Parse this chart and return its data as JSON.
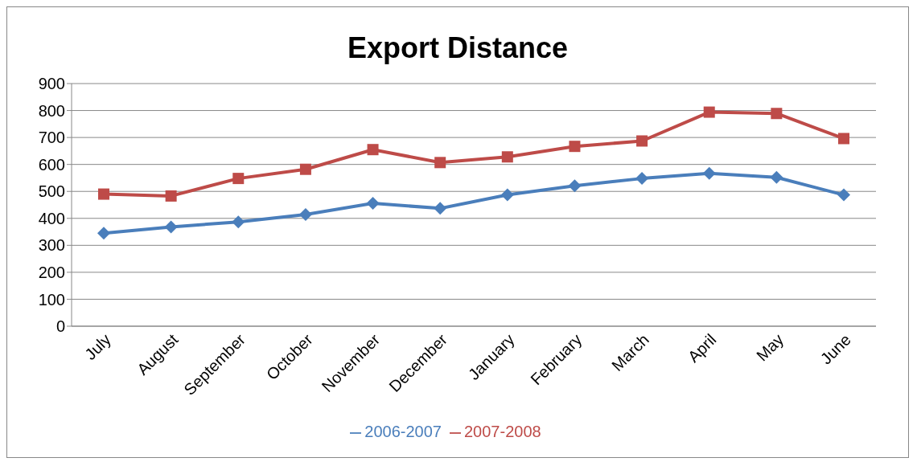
{
  "chart_data": {
    "type": "line",
    "title": "Export Distance",
    "categories": [
      "July",
      "August",
      "September",
      "October",
      "November",
      "December",
      "January",
      "February",
      "March",
      "April",
      "May",
      "June"
    ],
    "series": [
      {
        "name": "2006-2007",
        "color": "#4a7ebb",
        "marker": "diamond",
        "values": [
          345,
          368,
          387,
          414,
          456,
          437,
          487,
          521,
          548,
          567,
          552,
          487
        ]
      },
      {
        "name": "2007-2008",
        "color": "#be4b48",
        "marker": "square",
        "values": [
          490,
          483,
          548,
          582,
          655,
          607,
          628,
          667,
          687,
          794,
          789,
          696
        ]
      }
    ],
    "ylim": [
      0,
      900
    ],
    "yticks": [
      0,
      100,
      200,
      300,
      400,
      500,
      600,
      700,
      800,
      900
    ],
    "grid": "y",
    "legend": "bottom",
    "line_style": "solid"
  }
}
